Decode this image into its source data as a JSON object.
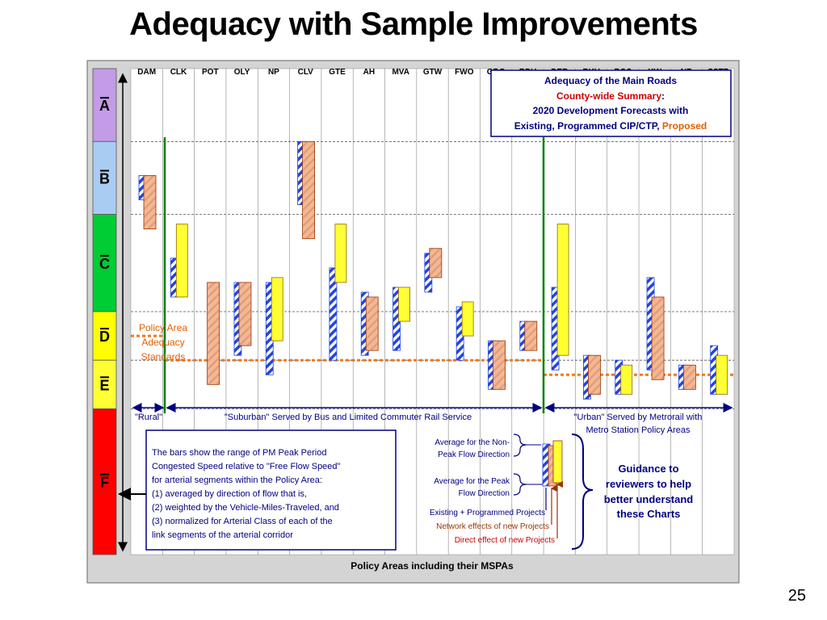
{
  "title": "Adequacy with Sample Improvements",
  "page_number": "25",
  "colors": {
    "grade_A": "#C39BE6",
    "grade_B": "#A9CCF2",
    "grade_C": "#00CC33",
    "grade_D": "#FFFF00",
    "grade_E": "#FFFF33",
    "grade_F": "#FF0000",
    "standard_line": "#F07820",
    "boundary_line": "#008000",
    "hatch": "#2244DD",
    "bar_fill": "#F4B98A",
    "bar_improved": "#FFFF33",
    "title_text": "#000080",
    "accent_red": "#CC0000",
    "accent_orange": "#E06000"
  },
  "chart_data": {
    "type": "bar",
    "title": "",
    "ylabel": "",
    "xlabel": "Policy Areas including their MSPAs",
    "grades": [
      "A",
      "B",
      "C",
      "D",
      "E",
      "F"
    ],
    "scale_note": "y values in percent of Free Flow Speed, top of A = 100, bottom of F = 0",
    "grade_bounds": [
      {
        "grade": "A",
        "top": 100,
        "bottom": 85
      },
      {
        "grade": "B",
        "top": 85,
        "bottom": 70
      },
      {
        "grade": "C",
        "top": 70,
        "bottom": 50
      },
      {
        "grade": "D",
        "top": 50,
        "bottom": 40
      },
      {
        "grade": "E",
        "top": 40,
        "bottom": 30
      },
      {
        "grade": "F",
        "top": 30,
        "bottom": 0
      }
    ],
    "policy_areas": [
      {
        "name": "DAM",
        "existing": [
          78,
          73
        ],
        "effect": [
          78,
          67
        ],
        "improved": null
      },
      {
        "name": "CLK",
        "existing": [
          61,
          53
        ],
        "effect": null,
        "improved": [
          68,
          53
        ]
      },
      {
        "name": "POT",
        "existing": null,
        "effect": [
          56,
          35
        ],
        "improved": null
      },
      {
        "name": "OLY",
        "existing": [
          56,
          41
        ],
        "effect": [
          56,
          43
        ],
        "improved": null
      },
      {
        "name": "NP",
        "existing": [
          56,
          37
        ],
        "effect": null,
        "improved": [
          57,
          44
        ]
      },
      {
        "name": "CLV",
        "existing": [
          85,
          72
        ],
        "effect": [
          85,
          65
        ],
        "improved": null
      },
      {
        "name": "GTE",
        "existing": [
          59,
          40
        ],
        "effect": null,
        "improved": [
          68,
          56
        ]
      },
      {
        "name": "AH",
        "existing": [
          54,
          41
        ],
        "effect": [
          53,
          42
        ],
        "improved": null
      },
      {
        "name": "MVA",
        "existing": [
          55,
          42
        ],
        "effect": null,
        "improved": [
          55,
          48
        ]
      },
      {
        "name": "GTW",
        "existing": [
          62,
          54
        ],
        "effect": [
          63,
          57
        ],
        "improved": null
      },
      {
        "name": "FWO",
        "existing": [
          51,
          40
        ],
        "effect": null,
        "improved": [
          52,
          45
        ]
      },
      {
        "name": "GBG",
        "existing": [
          44,
          34
        ],
        "effect": [
          44,
          34
        ],
        "improved": null
      },
      {
        "name": "RDV",
        "existing": [
          48,
          42
        ],
        "effect": [
          48,
          42
        ],
        "improved": null
      },
      {
        "name": "DER",
        "existing": [
          55,
          38
        ],
        "effect": null,
        "improved": [
          68,
          41
        ]
      },
      {
        "name": "RKV",
        "existing": [
          41,
          32
        ],
        "effect": [
          41,
          33
        ],
        "improved": null
      },
      {
        "name": "BCC",
        "existing": [
          40,
          33
        ],
        "effect": null,
        "improved": [
          39,
          33
        ]
      },
      {
        "name": "KW",
        "existing": [
          57,
          38
        ],
        "effect": [
          53,
          36
        ],
        "improved": null
      },
      {
        "name": "NB",
        "existing": [
          39,
          34
        ],
        "effect": [
          39,
          34
        ],
        "improved": null
      },
      {
        "name": "SSTP",
        "existing": [
          43,
          33
        ],
        "effect": null,
        "improved": [
          41,
          33
        ]
      }
    ],
    "standards": {
      "rural": 45,
      "suburban": 40,
      "urban": 37
    }
  },
  "labels": {
    "legend_box": {
      "line1": "Adequacy of the Main Roads",
      "line2a": "County-wide Summary",
      "line2b": ":",
      "line3": "2020 Development Forecasts with",
      "line4a": "Existing, Programmed CIP/CTP, ",
      "line4b": "Proposed"
    },
    "standards_text": [
      "Policy Area",
      "Adequacy",
      "Standards"
    ],
    "rural": "\"Rural\"",
    "suburban": "\"Suburban\" Served by Bus and Limited Commuter Rail Service",
    "urban_line1": "\"Urban\" Served by Metrorail with",
    "urban_line2": "Metro Station Policy Areas",
    "explain_box": [
      "The bars show the range of PM Peak Period",
      "Congested Speed relative to \"Free Flow Speed\"",
      "for arterial segments within the Policy Area:",
      "(1) averaged by direction of flow that is,",
      "(2) weighted by the Vehicle-Miles-Traveled, and",
      "(3) normalized for Arterial Class of each of the",
      "link segments of the arterial corridor"
    ],
    "nonpeak_1": "Average for the Non-",
    "nonpeak_2": "Peak Flow Direction",
    "peak_1": "Average for the Peak",
    "peak_2": "Flow Direction",
    "existing_programmed": "Existing + Programmed Projects",
    "network_effects": "Network effects of new Projects",
    "direct_effect": "Direct effect of new Projects",
    "guidance": [
      "Guidance to",
      "reviewers to help",
      "better understand",
      "these Charts"
    ],
    "x_axis": "Policy Areas including their MSPAs"
  }
}
